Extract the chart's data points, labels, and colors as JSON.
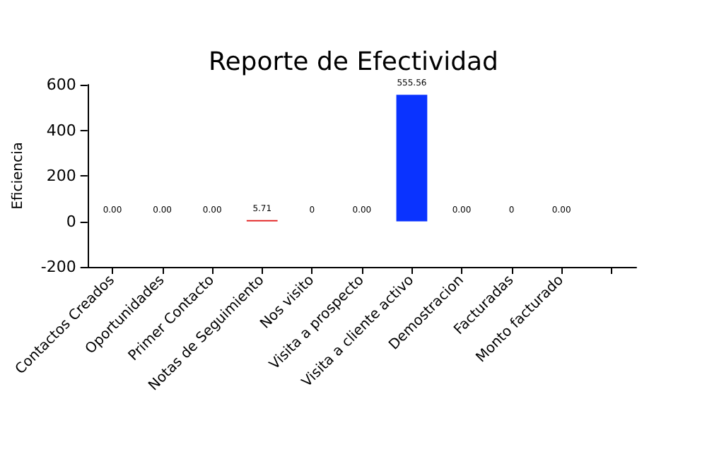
{
  "chart_data": {
    "type": "bar",
    "title": "Reporte de Efectividad",
    "ylabel": "Eficiencia",
    "categories": [
      "Contactos Creados",
      "Oportunidades",
      "Primer Contacto",
      "Notas de Seguimiento",
      "Nos visito",
      "Visita a prospecto",
      "Visita a cliente activo",
      "Demostracion",
      "Facturadas",
      "Monto facturado",
      null
    ],
    "values": [
      0,
      0,
      0,
      5.71,
      0,
      0,
      555.56,
      0,
      0,
      0,
      0
    ],
    "value_labels": [
      "0.00",
      "0.00",
      "0.00",
      "5.71",
      "0",
      "0.00",
      "555.56",
      "0.00",
      "0",
      "0.00",
      null
    ],
    "colors": [
      "#f08080",
      "#f08080",
      "#f08080",
      "#e01010",
      "#f08080",
      "#f08080",
      "#0a33ff",
      "#f08080",
      "#f08080",
      "#f08080",
      "#f08080"
    ],
    "ylim": [
      -200,
      600
    ],
    "yticks": [
      -200,
      0,
      200,
      400,
      600
    ],
    "grid": false
  }
}
